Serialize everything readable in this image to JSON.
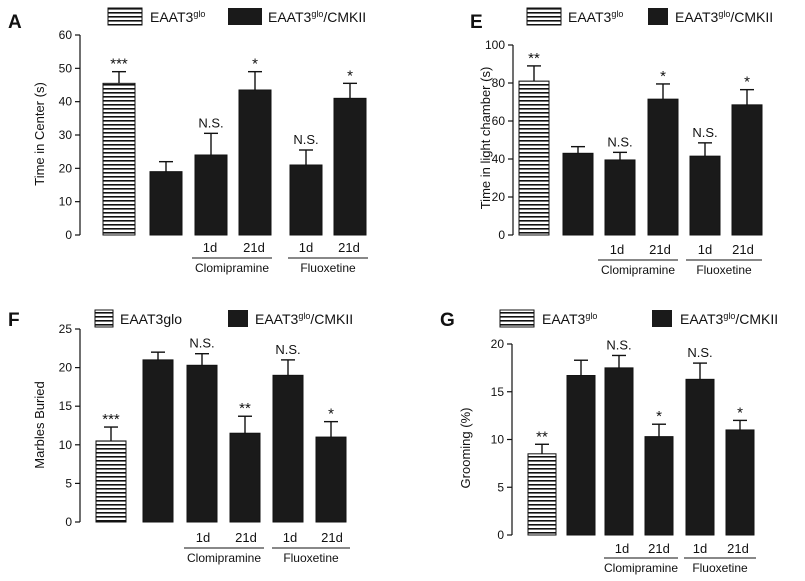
{
  "legend": {
    "glo": {
      "main": "EAAT3",
      "sup": "glo"
    },
    "cmk": {
      "main": "EAAT3",
      "sup": "glo",
      "tail": "/CMKII"
    },
    "glo_plain": "EAAT3glo"
  },
  "conditions": {
    "day1": "1d",
    "day21": "21d",
    "drug1": "Clomipramine",
    "drug2": "Fluoxetine"
  },
  "chart_data": [
    {
      "type": "bar",
      "panel": "A",
      "ylabel": "Time in Center (s)",
      "ylim": [
        0,
        60
      ],
      "yticks": [
        0,
        10,
        20,
        30,
        40,
        50,
        60
      ],
      "bars": [
        {
          "group": "EAAT3glo",
          "value": 45.5,
          "error": 3.5,
          "sig": "***"
        },
        {
          "group": "EAAT3glo/CMKII",
          "value": 19,
          "error": 3,
          "sig": ""
        },
        {
          "group": "Clomipramine 1d",
          "value": 24,
          "error": 6.5,
          "sig": "N.S."
        },
        {
          "group": "Clomipramine 21d",
          "value": 43.5,
          "error": 5.5,
          "sig": "*"
        },
        {
          "group": "Fluoxetine 1d",
          "value": 21,
          "error": 4.5,
          "sig": "N.S."
        },
        {
          "group": "Fluoxetine 21d",
          "value": 41,
          "error": 4.5,
          "sig": "*"
        }
      ]
    },
    {
      "type": "bar",
      "panel": "E",
      "ylabel": "Time in light chamber (s)",
      "ylim": [
        0,
        100
      ],
      "yticks": [
        0,
        20,
        40,
        60,
        80,
        100
      ],
      "bars": [
        {
          "group": "EAAT3glo",
          "value": 81,
          "error": 8,
          "sig": "**"
        },
        {
          "group": "EAAT3glo/CMKII",
          "value": 43,
          "error": 3.5,
          "sig": ""
        },
        {
          "group": "Clomipramine 1d",
          "value": 39.5,
          "error": 4,
          "sig": "N.S."
        },
        {
          "group": "Clomipramine 21d",
          "value": 71.5,
          "error": 8,
          "sig": "*"
        },
        {
          "group": "Fluoxetine 1d",
          "value": 41.5,
          "error": 7,
          "sig": "N.S."
        },
        {
          "group": "Fluoxetine 21d",
          "value": 68.5,
          "error": 8,
          "sig": "*"
        }
      ]
    },
    {
      "type": "bar",
      "panel": "F",
      "ylabel": "Marbles Buried",
      "ylim": [
        0,
        25
      ],
      "yticks": [
        0,
        5,
        10,
        15,
        20,
        25
      ],
      "bars": [
        {
          "group": "EAAT3glo",
          "value": 10.5,
          "error": 1.8,
          "sig": "***"
        },
        {
          "group": "EAAT3glo/CMKII",
          "value": 21,
          "error": 1,
          "sig": ""
        },
        {
          "group": "Clomipramine 1d",
          "value": 20.3,
          "error": 1.5,
          "sig": "N.S."
        },
        {
          "group": "Clomipramine 21d",
          "value": 11.5,
          "error": 2.2,
          "sig": "**"
        },
        {
          "group": "Fluoxetine 1d",
          "value": 19,
          "error": 2,
          "sig": "N.S."
        },
        {
          "group": "Fluoxetine 21d",
          "value": 11,
          "error": 2,
          "sig": "*"
        }
      ]
    },
    {
      "type": "bar",
      "panel": "G",
      "ylabel": "Grooming  (%)",
      "ylim": [
        0,
        20
      ],
      "yticks": [
        0,
        5,
        10,
        15,
        20
      ],
      "bars": [
        {
          "group": "EAAT3glo",
          "value": 8.5,
          "error": 1,
          "sig": "**"
        },
        {
          "group": "EAAT3glo/CMKII",
          "value": 16.7,
          "error": 1.6,
          "sig": ""
        },
        {
          "group": "Clomipramine 1d",
          "value": 17.5,
          "error": 1.3,
          "sig": "N.S."
        },
        {
          "group": "Clomipramine 21d",
          "value": 10.3,
          "error": 1.3,
          "sig": "*"
        },
        {
          "group": "Fluoxetine 1d",
          "value": 16.3,
          "error": 1.7,
          "sig": "N.S."
        },
        {
          "group": "Fluoxetine 21d",
          "value": 11,
          "error": 1,
          "sig": "*"
        }
      ]
    }
  ]
}
